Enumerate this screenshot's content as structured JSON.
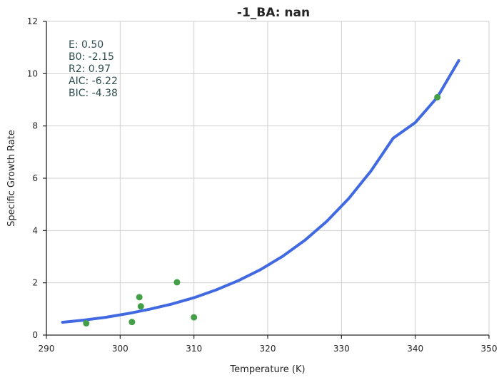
{
  "chart_data": {
    "type": "scatter",
    "title": "-1_BA: nan",
    "xlabel": "Temperature (K)",
    "ylabel": "Specific Growth Rate",
    "xlim": [
      290,
      350
    ],
    "ylim": [
      0,
      12
    ],
    "x_ticks": [
      290,
      300,
      310,
      320,
      330,
      340,
      350
    ],
    "y_ticks": [
      0,
      2,
      4,
      6,
      8,
      10,
      12
    ],
    "grid": true,
    "colors": {
      "points": "#43a047",
      "fit": "#4169e1",
      "grid": "#cfcfcf",
      "axis": "#262626",
      "stats": "#2f4f4f"
    },
    "points": [
      {
        "x": 295.4,
        "y": 0.45
      },
      {
        "x": 301.6,
        "y": 0.5
      },
      {
        "x": 302.6,
        "y": 1.45
      },
      {
        "x": 302.8,
        "y": 1.1
      },
      {
        "x": 307.7,
        "y": 2.02
      },
      {
        "x": 310.0,
        "y": 0.68
      },
      {
        "x": 343.0,
        "y": 9.1
      }
    ],
    "fit": {
      "x": [
        292.2,
        295.0,
        298.0,
        301.0,
        304.0,
        307.0,
        310.0,
        313.0,
        316.0,
        319.0,
        322.0,
        325.0,
        328.0,
        331.0,
        334.0,
        337.0,
        340.0,
        343.0,
        345.9
      ],
      "y": [
        0.49,
        0.57,
        0.68,
        0.82,
        0.99,
        1.19,
        1.43,
        1.73,
        2.08,
        2.5,
        3.01,
        3.62,
        4.35,
        5.23,
        6.28,
        7.53,
        8.13,
        9.1,
        10.5
      ]
    },
    "stats": [
      {
        "label": "E:",
        "value": "0.50"
      },
      {
        "label": "B0:",
        "value": "-2.15"
      },
      {
        "label": "R2:",
        "value": "0.97"
      },
      {
        "label": "AIC:",
        "value": "-6.22"
      },
      {
        "label": "BIC:",
        "value": "-4.38"
      }
    ]
  }
}
